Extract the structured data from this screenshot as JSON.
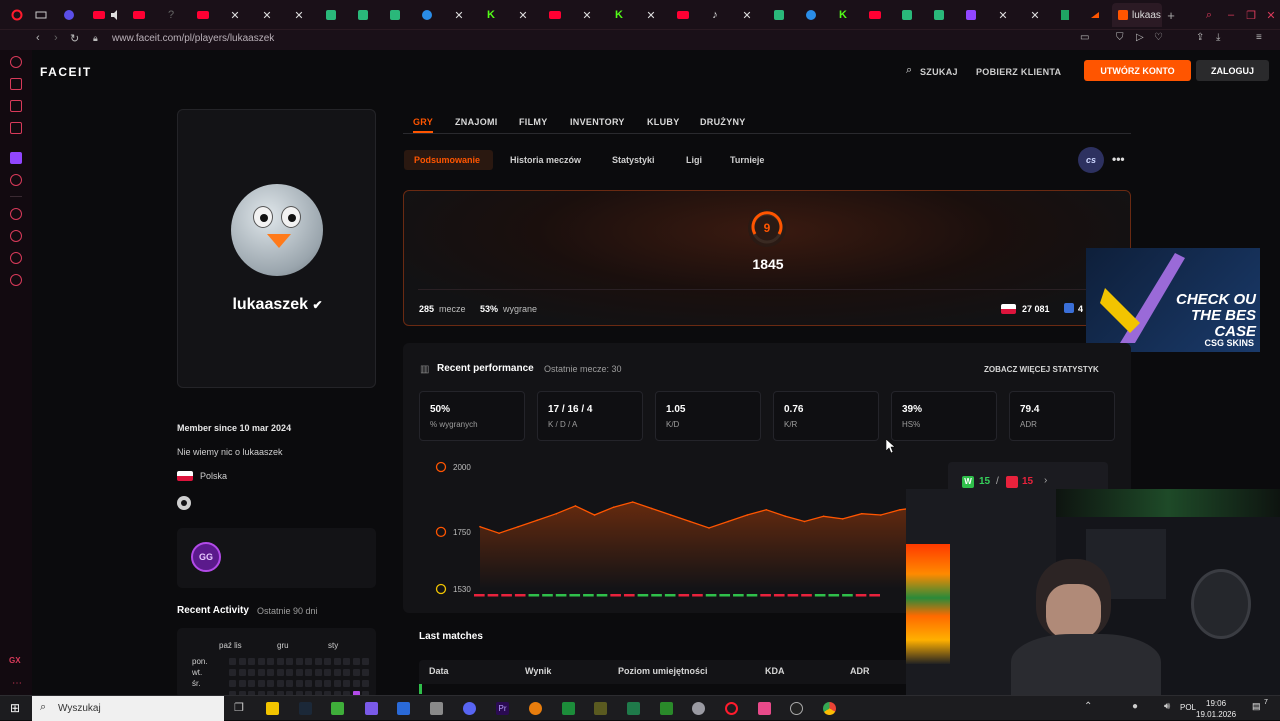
{
  "browser": {
    "active_tab_label": "lukaas",
    "url": "www.faceit.com/pl/players/lukaaszek"
  },
  "header": {
    "logo": "FACEIT",
    "search_label": "SZUKAJ",
    "download_label": "POBIERZ KLIENTA",
    "create_account_label": "UTWÓRZ KONTO",
    "login_label": "ZALOGUJ"
  },
  "profile": {
    "username": "lukaaszek",
    "member_since": "Member since 10 mar 2024",
    "about": "Nie wiemy nic o lukaaszek",
    "country": "Polska",
    "gg_label": "GG"
  },
  "activity": {
    "title": "Recent Activity",
    "subtitle": "Ostatnie 90 dni",
    "months": [
      "paź lis",
      "gru",
      "sty"
    ],
    "days": [
      "pon.",
      "wt.",
      "śr."
    ]
  },
  "game_tabs": [
    "GRY",
    "ZNAJOMI",
    "FILMY",
    "INVENTORY",
    "KLUBY",
    "DRUŻYNY"
  ],
  "sub_tabs": [
    "Podsumowanie",
    "Historia meczów",
    "Statystyki",
    "Ligi",
    "Turnieje"
  ],
  "game_badge": "cs",
  "elo": {
    "level": "9",
    "value": "1845",
    "matches_count": "285",
    "matches_label": "mecze",
    "win_pct": "53%",
    "win_label": "wygrane",
    "country_rank": "27 081",
    "region_rank_partial": "4"
  },
  "ad": {
    "title": "CHECK OU THE BES CASE",
    "brand": "CSG SKINS"
  },
  "performance": {
    "title": "Recent performance",
    "subtitle": "Ostatnie mecze: 30",
    "more_link": "ZOBACZ WIĘCEJ STATYSTYK",
    "stats": [
      {
        "value": "50%",
        "label": "% wygranych"
      },
      {
        "value": "17 / 16 / 4",
        "label": "K / D / A"
      },
      {
        "value": "1.05",
        "label": "K/D"
      },
      {
        "value": "0.76",
        "label": "K/R"
      },
      {
        "value": "39%",
        "label": "HS%"
      },
      {
        "value": "79.4",
        "label": "ADR"
      }
    ],
    "wins": "15",
    "losses": "15"
  },
  "chart_data": {
    "type": "line",
    "y_ticks": [
      "2000",
      "1750",
      "1530"
    ],
    "ylim": [
      1530,
      2000
    ],
    "values": [
      1770,
      1745,
      1770,
      1795,
      1820,
      1850,
      1815,
      1845,
      1865,
      1840,
      1815,
      1790,
      1765,
      1790,
      1815,
      1835,
      1810,
      1790,
      1810,
      1800,
      1820,
      1815,
      1835,
      1845
    ]
  },
  "last_matches": {
    "title": "Last matches",
    "columns": [
      "Data",
      "Wynik",
      "Poziom umiejętności",
      "KDA",
      "ADR"
    ]
  },
  "taskbar": {
    "search": "Wyszukaj",
    "lang": "POL",
    "time": "19:06",
    "date": "19.01.2026",
    "notif": "7"
  }
}
